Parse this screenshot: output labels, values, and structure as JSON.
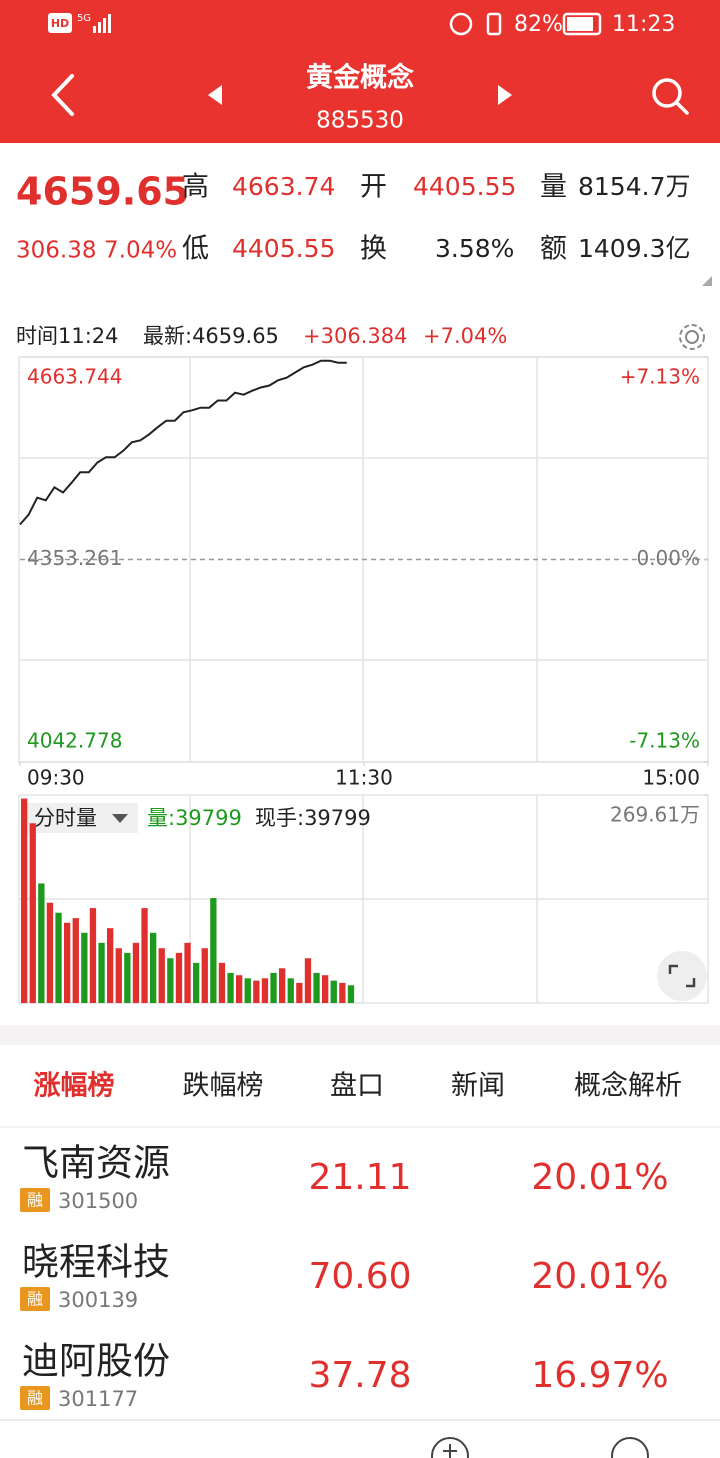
{
  "status_bar": {
    "hd": "HD",
    "network": "5G",
    "battery": "82%",
    "time": "11:23"
  },
  "header": {
    "title": "黄金概念",
    "code": "885530"
  },
  "quote": {
    "price": "4659.65",
    "change": "306.38",
    "change_pct": "7.04%",
    "fields": [
      {
        "label": "高",
        "value": "4663.74"
      },
      {
        "label": "开",
        "value": "4405.55"
      },
      {
        "label": "量",
        "value": "8154.7万"
      },
      {
        "label": "低",
        "value": "4405.55"
      },
      {
        "label": "换",
        "value": "3.58%"
      },
      {
        "label": "额",
        "value": "1409.3亿"
      }
    ]
  },
  "chart_data": [
    {
      "type": "line",
      "info": {
        "time": "时间11:24",
        "latest": "最新:4659.65",
        "change": "+306.384",
        "change_pct": "+7.04%"
      },
      "x": [
        0,
        3,
        6,
        9,
        12,
        15,
        18,
        21,
        24,
        27,
        30,
        33,
        36,
        39,
        42,
        45,
        48,
        51,
        54,
        57,
        60,
        63,
        66,
        69,
        72,
        75,
        78,
        81,
        84,
        87,
        90,
        93,
        96,
        99,
        102,
        105,
        108,
        111,
        114
      ],
      "values": [
        4407,
        4422,
        4448,
        4444,
        4464,
        4456,
        4471,
        4487,
        4487,
        4502,
        4510,
        4510,
        4520,
        4533,
        4536,
        4545,
        4556,
        4566,
        4566,
        4579,
        4582,
        4586,
        4586,
        4597,
        4597,
        4609,
        4606,
        4612,
        4617,
        4620,
        4628,
        4632,
        4640,
        4648,
        4652,
        4658,
        4658,
        4655,
        4655
      ],
      "color": "#222222",
      "xlim": [
        0,
        240
      ],
      "xticks": [
        {
          "value": 0,
          "label": "09:30"
        },
        {
          "value": 120,
          "label": "11:30"
        },
        {
          "value": 240,
          "label": "15:00"
        }
      ],
      "ylim": [
        4042.778,
        4663.744
      ],
      "yticks": [
        4663.744,
        4353.261,
        4042.778
      ],
      "y2lim": [
        -7.13,
        7.13
      ],
      "y2ticks": [
        {
          "value": 7.13,
          "label": "+7.13%"
        },
        {
          "value": 0,
          "label": "0.00%"
        },
        {
          "value": -7.13,
          "label": "-7.13%"
        }
      ]
    },
    {
      "type": "bar",
      "label": "分时量",
      "volume": "量:39799",
      "current": "现手:39799",
      "x": [
        0,
        3,
        6,
        9,
        12,
        15,
        18,
        21,
        24,
        27,
        30,
        33,
        36,
        39,
        42,
        45,
        48,
        51,
        54,
        57,
        60,
        63,
        66,
        69,
        72,
        75,
        78,
        81,
        84,
        87,
        90,
        93,
        96,
        99,
        102,
        105,
        108,
        111,
        114
      ],
      "values": [
        265,
        233,
        155,
        130,
        117,
        104,
        110,
        91,
        123,
        78,
        97,
        71,
        65,
        78,
        123,
        91,
        71,
        58,
        65,
        78,
        52,
        71,
        136,
        52,
        39,
        36,
        32,
        29,
        32,
        39,
        45,
        32,
        26,
        58,
        39,
        36,
        29,
        26,
        23
      ],
      "colors": [
        "#e0302e",
        "#e0302e",
        "#1d9a1d",
        "#e0302e",
        "#1d9a1d",
        "#e0302e",
        "#e0302e",
        "#1d9a1d",
        "#e0302e",
        "#1d9a1d",
        "#e0302e",
        "#e0302e",
        "#1d9a1d",
        "#e0302e",
        "#e0302e",
        "#1d9a1d",
        "#e0302e",
        "#1d9a1d",
        "#e0302e",
        "#e0302e",
        "#1d9a1d",
        "#e0302e",
        "#1d9a1d",
        "#e0302e",
        "#1d9a1d",
        "#e0302e",
        "#1d9a1d",
        "#e0302e",
        "#e0302e",
        "#1d9a1d",
        "#e0302e",
        "#1d9a1d",
        "#e0302e",
        "#e0302e",
        "#1d9a1d",
        "#e0302e",
        "#1d9a1d",
        "#e0302e",
        "#1d9a1d"
      ],
      "xlim": [
        0,
        240
      ],
      "ylim": [
        0,
        269.61
      ],
      "yticks": [
        {
          "value": 269.61,
          "label": "269.61万"
        }
      ]
    }
  ],
  "tabs": [
    "涨幅榜",
    "跌幅榜",
    "盘口",
    "新闻",
    "概念解析"
  ],
  "stocks": [
    {
      "name": "飞南资源",
      "tag": "融",
      "code": "301500",
      "price": "21.11",
      "change": "20.01%"
    },
    {
      "name": "晓程科技",
      "tag": "融",
      "code": "300139",
      "price": "70.60",
      "change": "20.01%"
    },
    {
      "name": "迪阿股份",
      "tag": "融",
      "code": "301177",
      "price": "37.78",
      "change": "16.97%"
    }
  ]
}
